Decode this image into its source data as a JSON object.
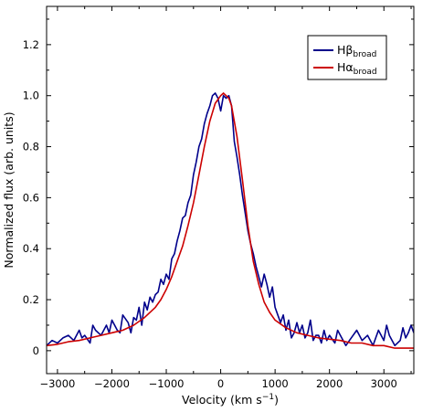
{
  "chart_data": {
    "type": "line",
    "title": "",
    "xlabel": {
      "main": "Velocity (km s",
      "sup": "−1",
      "close": ")"
    },
    "ylabel": "Normalized flux (arb. units)",
    "xlim": [
      -3200,
      3550
    ],
    "ylim": [
      -0.09,
      1.35
    ],
    "xticks": [
      -3000,
      -2000,
      -1000,
      0,
      1000,
      2000,
      3000
    ],
    "xtick_labels": [
      "−3000",
      "−2000",
      "−1000",
      "0",
      "1000",
      "2000",
      "3000"
    ],
    "yticks": [
      0,
      0.2,
      0.4,
      0.6,
      0.8,
      1.0,
      1.2
    ],
    "ytick_labels": [
      "0",
      "0.2",
      "0.4",
      "0.6",
      "0.8",
      "1.0",
      "1.2"
    ],
    "grid": false,
    "legend_position": "top-right",
    "series": [
      {
        "name": "Hβ",
        "name_sub": "broad",
        "color": "#00008b",
        "x": [
          -3200,
          -3100,
          -3000,
          -2900,
          -2800,
          -2700,
          -2600,
          -2550,
          -2500,
          -2400,
          -2350,
          -2300,
          -2200,
          -2100,
          -2050,
          -2000,
          -1900,
          -1850,
          -1800,
          -1700,
          -1650,
          -1600,
          -1550,
          -1500,
          -1450,
          -1400,
          -1350,
          -1300,
          -1250,
          -1200,
          -1150,
          -1100,
          -1050,
          -1000,
          -950,
          -900,
          -850,
          -800,
          -750,
          -700,
          -650,
          -600,
          -550,
          -500,
          -450,
          -400,
          -350,
          -300,
          -250,
          -200,
          -150,
          -100,
          -50,
          0,
          50,
          100,
          150,
          200,
          250,
          300,
          350,
          400,
          450,
          500,
          550,
          600,
          650,
          700,
          750,
          800,
          850,
          900,
          950,
          1000,
          1050,
          1100,
          1150,
          1200,
          1250,
          1300,
          1350,
          1400,
          1450,
          1500,
          1550,
          1600,
          1650,
          1700,
          1750,
          1800,
          1850,
          1900,
          1950,
          2000,
          2100,
          2150,
          2200,
          2300,
          2400,
          2500,
          2600,
          2700,
          2800,
          2850,
          2900,
          3000,
          3050,
          3100,
          3200,
          3300,
          3350,
          3400,
          3450,
          3500,
          3550
        ],
        "y": [
          0.02,
          0.04,
          0.03,
          0.05,
          0.06,
          0.04,
          0.08,
          0.05,
          0.06,
          0.03,
          0.1,
          0.08,
          0.06,
          0.1,
          0.07,
          0.12,
          0.08,
          0.07,
          0.14,
          0.11,
          0.07,
          0.13,
          0.12,
          0.17,
          0.1,
          0.19,
          0.16,
          0.21,
          0.19,
          0.22,
          0.23,
          0.28,
          0.26,
          0.3,
          0.28,
          0.36,
          0.38,
          0.43,
          0.47,
          0.52,
          0.53,
          0.58,
          0.61,
          0.69,
          0.74,
          0.8,
          0.83,
          0.89,
          0.93,
          0.96,
          1.0,
          1.01,
          0.99,
          0.94,
          1.0,
          0.99,
          1.0,
          0.96,
          0.82,
          0.76,
          0.69,
          0.61,
          0.54,
          0.47,
          0.42,
          0.38,
          0.33,
          0.29,
          0.25,
          0.3,
          0.26,
          0.21,
          0.25,
          0.17,
          0.14,
          0.11,
          0.14,
          0.08,
          0.12,
          0.05,
          0.07,
          0.11,
          0.07,
          0.1,
          0.05,
          0.07,
          0.12,
          0.04,
          0.06,
          0.06,
          0.03,
          0.08,
          0.04,
          0.06,
          0.03,
          0.08,
          0.06,
          0.02,
          0.05,
          0.08,
          0.04,
          0.06,
          0.02,
          0.05,
          0.08,
          0.04,
          0.1,
          0.06,
          0.02,
          0.04,
          0.09,
          0.05,
          0.07,
          0.1,
          0.07
        ]
      },
      {
        "name": "Hα",
        "name_sub": "broad",
        "color": "#cc0000",
        "x": [
          -3200,
          -3000,
          -2800,
          -2600,
          -2400,
          -2200,
          -2000,
          -1800,
          -1600,
          -1400,
          -1200,
          -1100,
          -1000,
          -900,
          -800,
          -700,
          -600,
          -500,
          -400,
          -300,
          -200,
          -100,
          0,
          50,
          100,
          150,
          200,
          300,
          400,
          500,
          600,
          700,
          800,
          900,
          1000,
          1200,
          1400,
          1600,
          1800,
          2000,
          2200,
          2400,
          2600,
          2800,
          3000,
          3200,
          3400,
          3550
        ],
        "y": [
          0.02,
          0.025,
          0.035,
          0.04,
          0.05,
          0.06,
          0.07,
          0.08,
          0.1,
          0.13,
          0.17,
          0.2,
          0.24,
          0.29,
          0.35,
          0.41,
          0.49,
          0.58,
          0.69,
          0.8,
          0.9,
          0.97,
          1.0,
          1.01,
          1.0,
          0.99,
          0.96,
          0.84,
          0.67,
          0.49,
          0.35,
          0.26,
          0.19,
          0.15,
          0.12,
          0.09,
          0.07,
          0.06,
          0.05,
          0.045,
          0.04,
          0.03,
          0.03,
          0.02,
          0.02,
          0.01,
          0.01,
          0.01
        ]
      }
    ]
  }
}
